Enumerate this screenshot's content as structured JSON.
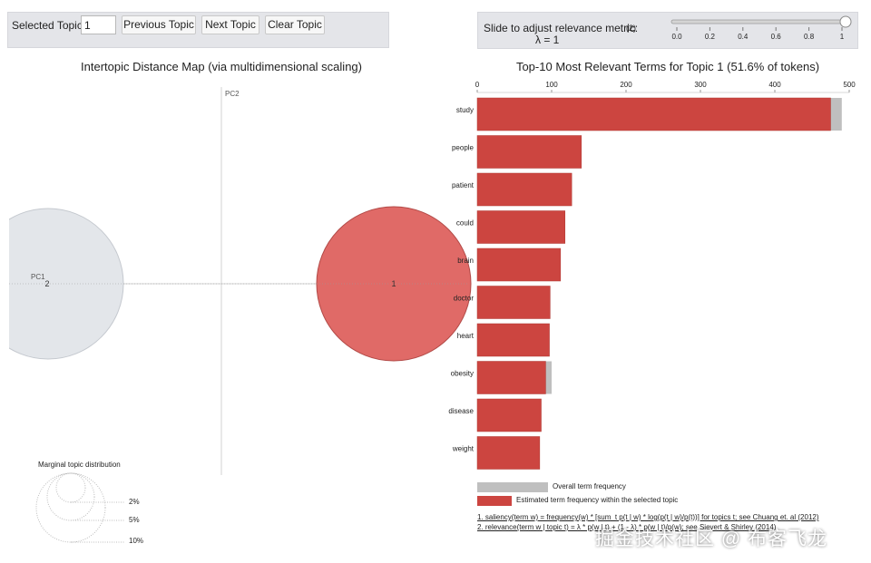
{
  "controls": {
    "selected_topic_label": "Selected Topic:",
    "selected_topic_value": "1",
    "previous_label": "Previous Topic",
    "next_label": "Next Topic",
    "clear_label": "Clear Topic"
  },
  "relevance": {
    "label": "Slide to adjust relevance metric:",
    "footnote_ref": "(2)",
    "lambda_text": "λ = 1",
    "lambda_value": 1,
    "ticks": [
      "0.0",
      "0.2",
      "0.4",
      "0.6",
      "0.8",
      "1"
    ]
  },
  "left_panel": {
    "title": "Intertopic Distance Map (via multidimensional scaling)",
    "pc1_label": "PC1",
    "pc2_label": "PC2",
    "topics": [
      {
        "id": "1",
        "color": "#e06a67",
        "selected": true
      },
      {
        "id": "2",
        "color": "#e3e6ea",
        "selected": false
      }
    ],
    "marginal": {
      "title": "Marginal topic distribution",
      "levels": [
        "2%",
        "5%",
        "10%"
      ]
    }
  },
  "right_panel": {
    "title": "Top-10 Most Relevant Terms for Topic 1 (51.6% of tokens)",
    "axis_ticks": [
      "0",
      "100",
      "200",
      "300",
      "400",
      "500"
    ],
    "legend": {
      "overall": "Overall term frequency",
      "estimated": "Estimated term frequency within the selected topic"
    },
    "footnotes": [
      "1. saliency(term w) = frequency(w) * [sum_t p(t | w) * log(p(t | w)/p(t))] for topics t; see Chuang et. al (2012)",
      "2. relevance(term w | topic t) = λ * p(w | t) + (1 - λ) * p(w | t)/p(w); see Sievert & Shirley (2014)"
    ]
  },
  "chart_data": {
    "type": "bar",
    "orientation": "horizontal",
    "categories": [
      "study",
      "people",
      "patient",
      "could",
      "brain",
      "doctor",
      "heart",
      "obesity",
      "disease",
      "weight"
    ],
    "series": [
      {
        "name": "Overall term frequency",
        "color": "#bfbfbf",
        "values": [
          490,
          140,
          127,
          118,
          112,
          98,
          97,
          100,
          86,
          84
        ]
      },
      {
        "name": "Estimated term frequency within the selected topic",
        "color": "#cc4540",
        "values": [
          475,
          140,
          127,
          118,
          112,
          98,
          97,
          92,
          86,
          84
        ]
      }
    ],
    "xlim": [
      0,
      500
    ],
    "xticks": [
      0,
      100,
      200,
      300,
      400,
      500
    ]
  },
  "colors": {
    "panel_bg": "#e4e5e9",
    "bar_red": "#cc4540",
    "bar_gray": "#bfbfbf",
    "topic_selected": "#e06a67",
    "topic_other": "#e3e6ea"
  },
  "watermark": "掘金技术社区 @ 布客飞龙"
}
